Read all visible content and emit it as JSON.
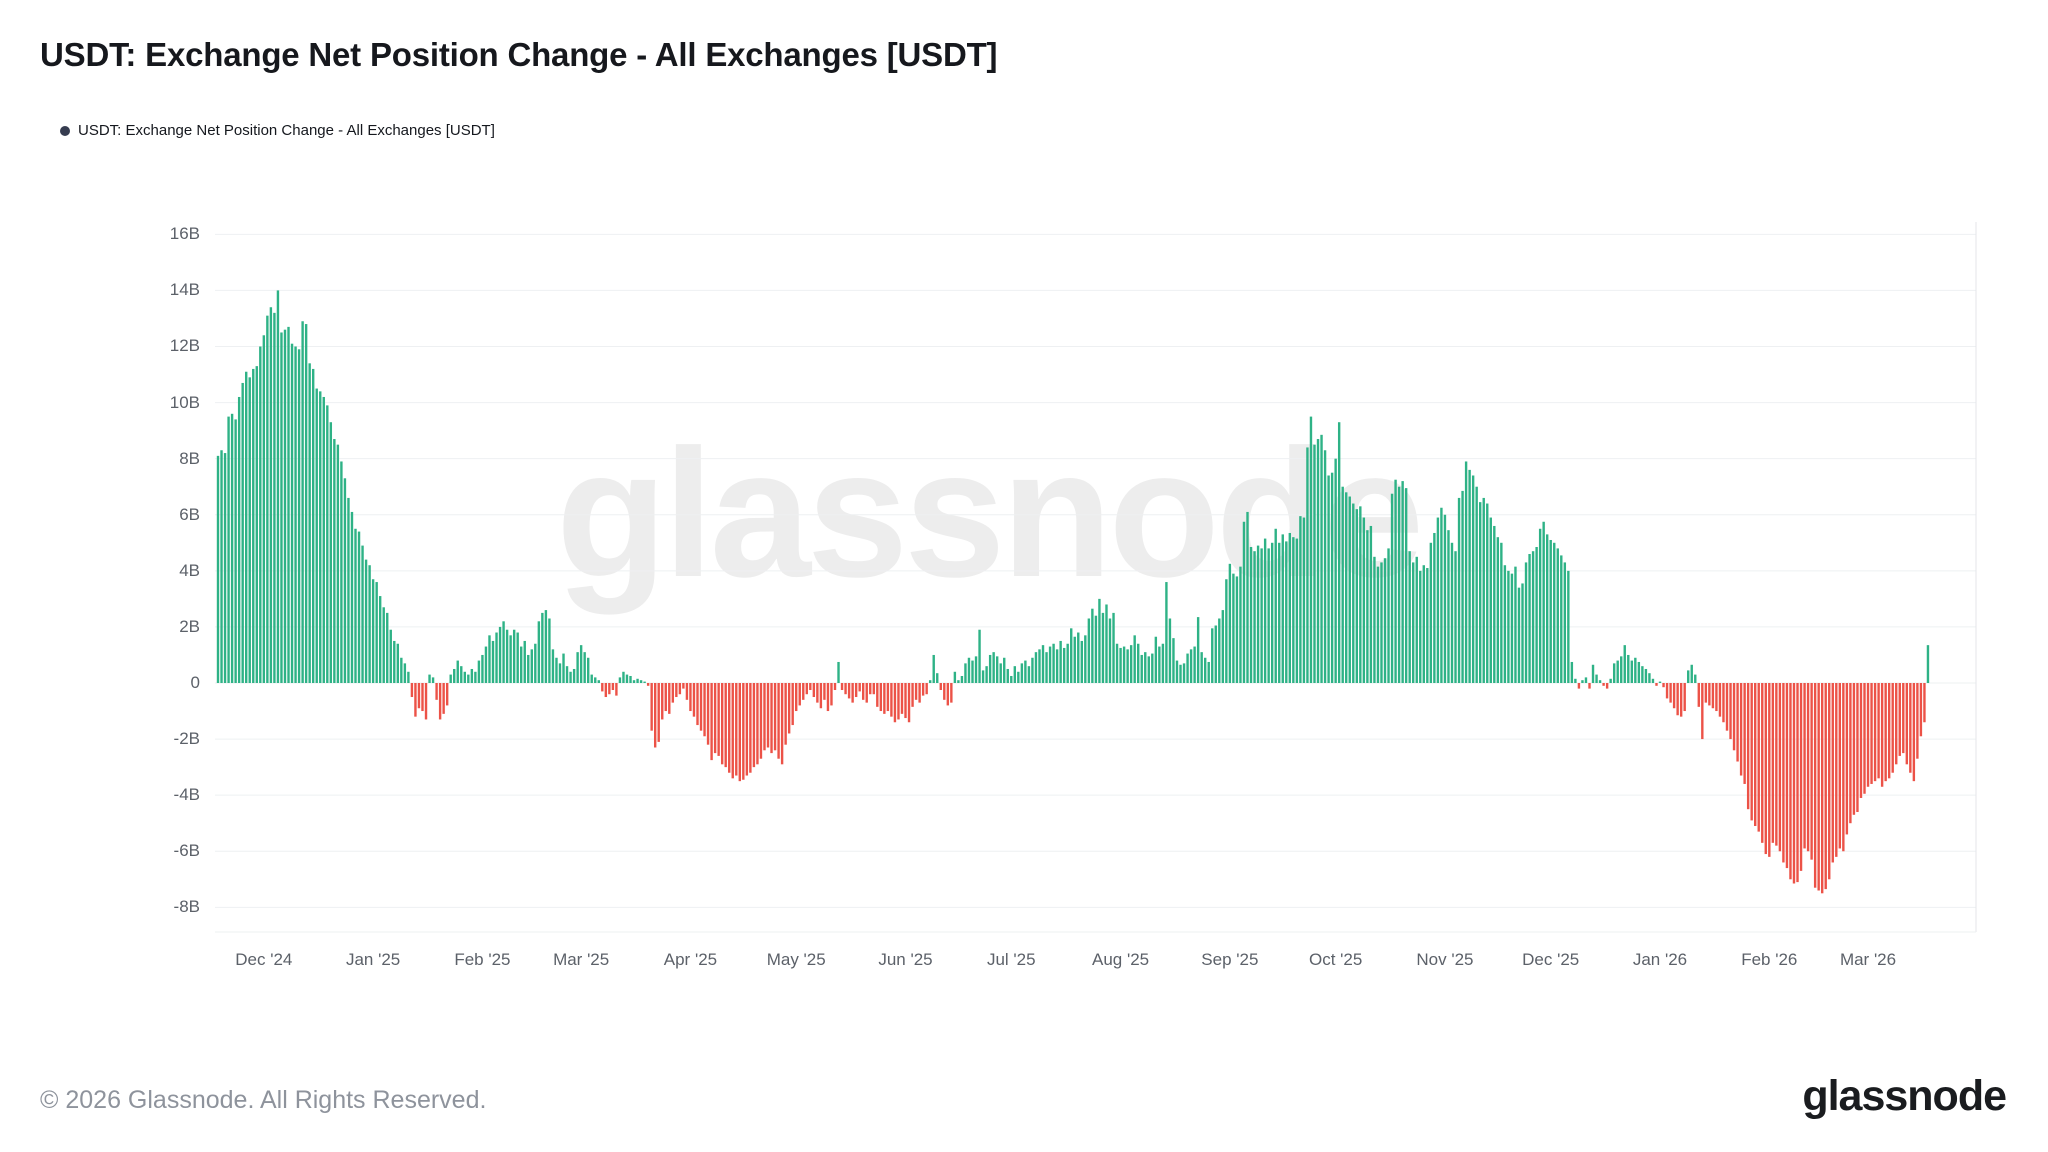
{
  "title": "USDT: Exchange Net Position Change - All Exchanges [USDT]",
  "legend": {
    "label": "USDT: Exchange Net Position Change - All Exchanges [USDT]",
    "dot_color": "#363c50"
  },
  "watermark": "glassnode",
  "footer": {
    "copyright": "© 2026 Glassnode. All Rights Reserved.",
    "brand": "glassnode"
  },
  "chart_data": {
    "type": "bar",
    "title": "USDT: Exchange Net Position Change - All Exchanges [USDT]",
    "unit": "USDT (billions)",
    "frequency": "daily",
    "start_date": "2024-11-18",
    "end_date": "2026-03-18",
    "grid": true,
    "legend_position": "top-left",
    "positive_color": "#2eb286",
    "negative_color": "#ec5247",
    "y_axis": {
      "tick_values": [
        16,
        14,
        12,
        10,
        8,
        6,
        4,
        2,
        0,
        -2,
        -4,
        -6,
        -8
      ],
      "tick_labels": [
        "16B",
        "14B",
        "12B",
        "10B",
        "8B",
        "6B",
        "4B",
        "2B",
        "0",
        "-2B",
        "-4B",
        "-6B",
        "-8B"
      ],
      "range_billions": [
        -8,
        16
      ]
    },
    "x_axis": {
      "ticks": [
        {
          "label": "Dec '24",
          "day": 13
        },
        {
          "label": "Jan '25",
          "day": 44
        },
        {
          "label": "Feb '25",
          "day": 75
        },
        {
          "label": "Mar '25",
          "day": 103
        },
        {
          "label": "Apr '25",
          "day": 134
        },
        {
          "label": "May '25",
          "day": 164
        },
        {
          "label": "Jun '25",
          "day": 195
        },
        {
          "label": "Jul '25",
          "day": 225
        },
        {
          "label": "Aug '25",
          "day": 256
        },
        {
          "label": "Sep '25",
          "day": 287
        },
        {
          "label": "Oct '25",
          "day": 317
        },
        {
          "label": "Nov '25",
          "day": 348
        },
        {
          "label": "Dec '25",
          "day": 378
        },
        {
          "label": "Jan '26",
          "day": 409
        },
        {
          "label": "Feb '26",
          "day": 440
        },
        {
          "label": "Mar '26",
          "day": 468
        }
      ]
    },
    "values_billions": [
      8.1,
      8.3,
      8.2,
      9.5,
      9.6,
      9.4,
      10.2,
      10.7,
      11.1,
      10.9,
      11.2,
      11.3,
      12.0,
      12.4,
      13.1,
      13.4,
      13.2,
      14.0,
      12.5,
      12.6,
      12.7,
      12.1,
      12.0,
      11.9,
      12.9,
      12.8,
      11.4,
      11.2,
      10.5,
      10.4,
      10.2,
      9.9,
      9.3,
      8.7,
      8.5,
      7.9,
      7.3,
      6.6,
      6.1,
      5.5,
      5.4,
      4.9,
      4.4,
      4.2,
      3.7,
      3.6,
      3.1,
      2.7,
      2.5,
      1.9,
      1.5,
      1.4,
      0.9,
      0.7,
      0.4,
      -0.5,
      -1.2,
      -0.9,
      -1.0,
      -1.3,
      0.3,
      0.2,
      -0.6,
      -1.3,
      -1.1,
      -0.8,
      0.3,
      0.5,
      0.8,
      0.6,
      0.4,
      0.3,
      0.5,
      0.4,
      0.8,
      1.0,
      1.3,
      1.7,
      1.5,
      1.8,
      2.0,
      2.2,
      1.9,
      1.7,
      1.9,
      1.8,
      1.3,
      1.5,
      1.0,
      1.2,
      1.4,
      2.2,
      2.5,
      2.6,
      2.3,
      1.2,
      0.9,
      0.7,
      1.05,
      0.6,
      0.4,
      0.5,
      1.1,
      1.35,
      1.1,
      0.9,
      0.3,
      0.2,
      0.1,
      -0.3,
      -0.5,
      -0.4,
      -0.25,
      -0.45,
      0.2,
      0.4,
      0.3,
      0.25,
      0.1,
      0.15,
      0.1,
      0.05,
      -0.1,
      -1.7,
      -2.3,
      -2.1,
      -1.3,
      -1.0,
      -1.1,
      -0.7,
      -0.5,
      -0.4,
      -0.2,
      -0.6,
      -1.0,
      -1.2,
      -1.5,
      -1.7,
      -1.9,
      -2.2,
      -2.75,
      -2.5,
      -2.6,
      -2.9,
      -3.0,
      -3.2,
      -3.4,
      -3.3,
      -3.5,
      -3.45,
      -3.3,
      -3.2,
      -3.0,
      -2.9,
      -2.7,
      -2.4,
      -2.3,
      -2.5,
      -2.4,
      -2.7,
      -2.9,
      -2.2,
      -1.8,
      -1.5,
      -1.0,
      -0.8,
      -0.6,
      -0.4,
      -0.25,
      -0.5,
      -0.7,
      -0.9,
      -0.6,
      -1.0,
      -0.8,
      -0.25,
      0.75,
      -0.25,
      -0.4,
      -0.55,
      -0.7,
      -0.5,
      -0.3,
      -0.6,
      -0.7,
      -0.4,
      -0.4,
      -0.85,
      -1.0,
      -1.1,
      -1.0,
      -1.2,
      -1.4,
      -1.3,
      -1.1,
      -1.25,
      -1.4,
      -0.85,
      -0.6,
      -0.7,
      -0.45,
      -0.4,
      0.1,
      1.0,
      0.35,
      -0.25,
      -0.6,
      -0.8,
      -0.7,
      0.4,
      0.1,
      0.25,
      0.7,
      0.9,
      0.8,
      0.95,
      1.9,
      0.45,
      0.6,
      1.0,
      1.1,
      0.95,
      0.7,
      0.9,
      0.5,
      0.25,
      0.6,
      0.4,
      0.7,
      0.8,
      0.6,
      0.9,
      1.1,
      1.2,
      1.35,
      1.1,
      1.3,
      1.4,
      1.2,
      1.5,
      1.25,
      1.4,
      1.95,
      1.65,
      1.8,
      1.5,
      1.7,
      2.3,
      2.65,
      2.4,
      3.0,
      2.5,
      2.8,
      2.3,
      2.5,
      1.4,
      1.25,
      1.3,
      1.2,
      1.35,
      1.7,
      1.4,
      1.0,
      1.1,
      0.95,
      1.05,
      1.65,
      1.3,
      1.4,
      3.6,
      2.3,
      1.6,
      0.8,
      0.65,
      0.7,
      1.05,
      1.2,
      1.3,
      2.35,
      1.1,
      0.9,
      0.75,
      1.95,
      2.05,
      2.3,
      2.6,
      3.7,
      4.25,
      3.9,
      3.8,
      4.15,
      5.75,
      6.1,
      4.85,
      4.7,
      4.9,
      4.8,
      5.15,
      4.8,
      5.0,
      5.5,
      5.0,
      5.3,
      5.05,
      5.35,
      5.2,
      5.15,
      5.95,
      5.9,
      8.4,
      9.5,
      8.5,
      8.7,
      8.85,
      8.3,
      7.4,
      7.5,
      8.0,
      9.3,
      7.0,
      6.8,
      6.65,
      6.4,
      6.2,
      6.3,
      5.9,
      5.45,
      5.6,
      4.5,
      4.15,
      4.3,
      4.45,
      4.8,
      6.75,
      7.25,
      7.0,
      7.2,
      6.95,
      4.7,
      4.3,
      4.5,
      4.0,
      4.2,
      4.1,
      5.0,
      5.35,
      5.9,
      6.25,
      6.0,
      5.45,
      5.0,
      4.7,
      6.6,
      6.85,
      7.9,
      7.6,
      7.4,
      7.0,
      6.45,
      6.6,
      6.4,
      5.9,
      5.6,
      5.2,
      5.0,
      4.2,
      4.0,
      3.9,
      4.15,
      3.4,
      3.55,
      4.3,
      4.6,
      4.7,
      4.85,
      5.5,
      5.75,
      5.3,
      5.1,
      5.0,
      4.8,
      4.55,
      4.3,
      4.0,
      0.75,
      0.15,
      -0.2,
      0.1,
      0.2,
      -0.2,
      0.65,
      0.3,
      0.1,
      -0.1,
      -0.2,
      0.15,
      0.7,
      0.8,
      0.95,
      1.35,
      1.0,
      0.8,
      0.9,
      0.75,
      0.6,
      0.5,
      0.35,
      0.15,
      -0.1,
      0.05,
      -0.15,
      -0.55,
      -0.7,
      -0.9,
      -1.15,
      -1.2,
      -1.0,
      0.45,
      0.65,
      0.3,
      -0.85,
      -2.0,
      -0.7,
      -0.8,
      -0.9,
      -1.0,
      -1.2,
      -1.4,
      -1.7,
      -2.0,
      -2.4,
      -2.8,
      -3.3,
      -3.6,
      -4.5,
      -4.9,
      -5.1,
      -5.3,
      -5.7,
      -6.1,
      -6.2,
      -5.7,
      -5.8,
      -6.0,
      -6.4,
      -6.6,
      -7.0,
      -7.15,
      -7.1,
      -6.7,
      -5.9,
      -6.0,
      -6.3,
      -7.3,
      -7.4,
      -7.5,
      -7.35,
      -7.0,
      -6.4,
      -6.2,
      -5.9,
      -6.0,
      -5.4,
      -5.0,
      -4.7,
      -4.6,
      -4.1,
      -3.95,
      -3.7,
      -3.6,
      -3.5,
      -3.4,
      -3.7,
      -3.5,
      -3.4,
      -3.2,
      -2.9,
      -2.6,
      -2.5,
      -2.9,
      -3.2,
      -3.5,
      -2.7,
      -1.9,
      -1.4,
      1.35
    ]
  }
}
